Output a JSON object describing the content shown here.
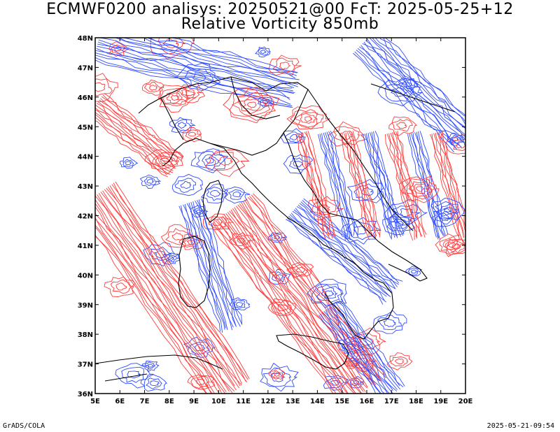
{
  "title": {
    "line1": "ECMWF0200 analisys: 20250521@00 FcT: 2025-05-25+12",
    "line2": "Relative Vorticity 850mb"
  },
  "map": {
    "lon_ticks": [
      "5E",
      "6E",
      "7E",
      "8E",
      "9E",
      "10E",
      "11E",
      "12E",
      "13E",
      "14E",
      "15E",
      "16E",
      "17E",
      "18E",
      "19E",
      "20E"
    ],
    "lat_ticks": [
      "36N",
      "37N",
      "38N",
      "39N",
      "40N",
      "41N",
      "42N",
      "43N",
      "44N",
      "45N",
      "46N",
      "47N",
      "48N"
    ],
    "lon_range": [
      5,
      20
    ],
    "lat_range": [
      36,
      48
    ],
    "colors": {
      "positive_vorticity": "#ff3b3b",
      "negative_vorticity": "#2f4bff",
      "coastline": "#000000",
      "frame": "#000000"
    }
  },
  "footer": {
    "left": "GrADS/COLA",
    "right": "2025-05-21-09:54"
  }
}
